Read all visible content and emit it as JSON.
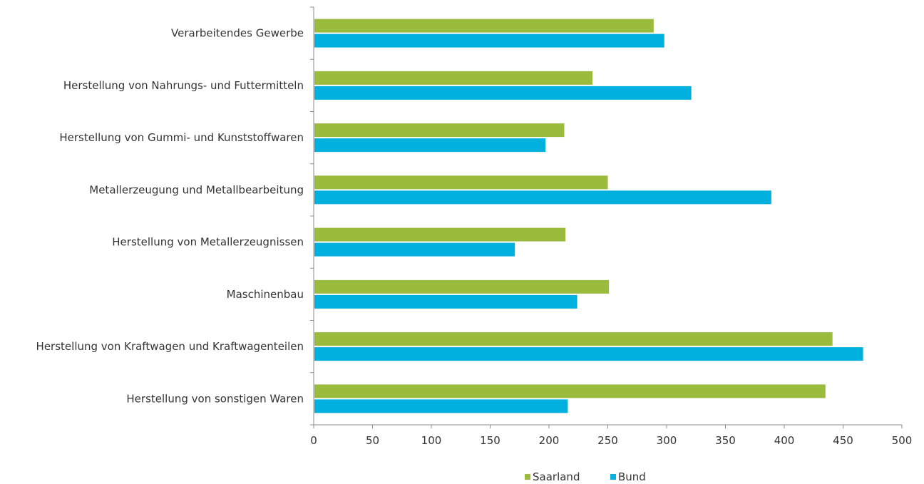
{
  "chart_data": {
    "type": "bar",
    "orientation": "horizontal",
    "categories": [
      "Verarbeitendes Gewerbe",
      "Herstellung von Nahrungs- und Futtermitteln",
      "Herstellung von Gummi- und Kunststoffwaren",
      "Metallerzeugung und Metallbearbeitung",
      "Herstellung von Metallerzeugnissen",
      "Maschinenbau",
      "Herstellung von Kraftwagen und Kraftwagenteilen",
      "Herstellung von sonstigen Waren"
    ],
    "series": [
      {
        "name": "Saarland",
        "color": "#9bbb3c",
        "values": [
          289,
          237,
          213,
          250,
          214,
          251,
          441,
          435
        ]
      },
      {
        "name": "Bund",
        "color": "#00b0de",
        "values": [
          298,
          321,
          197,
          389,
          171,
          224,
          467,
          216
        ]
      }
    ],
    "xlim": [
      0,
      500
    ],
    "xticks": [
      "0",
      "50",
      "100",
      "150",
      "200",
      "250",
      "300",
      "350",
      "400",
      "450",
      "500"
    ],
    "grid": false,
    "legend_position": "bottom-center"
  }
}
